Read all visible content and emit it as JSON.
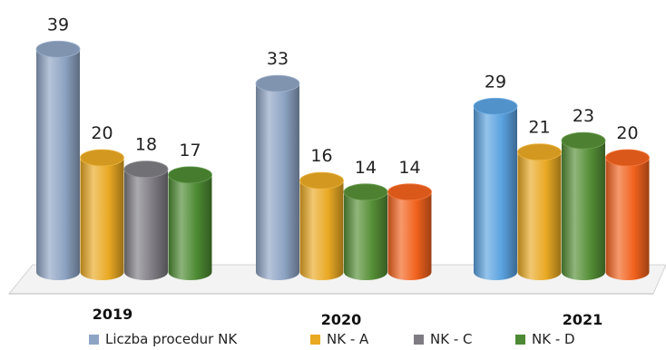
{
  "chart_data": {
    "type": "bar",
    "categories": [
      "2019",
      "2020",
      "2021"
    ],
    "series": [
      {
        "name": "Liczba procedur NK",
        "color": "#8ea4c4"
      },
      {
        "name": "NK - A",
        "color": "#e9a923"
      },
      {
        "name": "NK - C",
        "color": "#7e7c82"
      },
      {
        "name": "NK - D",
        "color": "#4d8a33"
      }
    ],
    "bars": [
      {
        "category": "2019",
        "series": "Liczba procedur NK",
        "value": 39,
        "color": "#8ea4c4"
      },
      {
        "category": "2019",
        "series": "NK - A",
        "value": 20,
        "color": "#e9a923"
      },
      {
        "category": "2019",
        "value": 18,
        "color": "#7e7c82"
      },
      {
        "category": "2019",
        "value": 17,
        "color": "#4d8a33"
      },
      {
        "category": "2020",
        "series": "Liczba procedur NK",
        "value": 33,
        "color": "#8ea4c4"
      },
      {
        "category": "2020",
        "series": "NK - A",
        "value": 16,
        "color": "#e9a923"
      },
      {
        "category": "2020",
        "value": 14,
        "color": "#558f36"
      },
      {
        "category": "2020",
        "value": 14,
        "color": "#f2621d"
      },
      {
        "category": "2021",
        "value": 29,
        "color": "#5aa2e0"
      },
      {
        "category": "2021",
        "series": "NK - A",
        "value": 21,
        "color": "#e9a923"
      },
      {
        "category": "2021",
        "value": 23,
        "color": "#558f36"
      },
      {
        "category": "2021",
        "value": 20,
        "color": "#f2621d"
      }
    ],
    "ylim": [
      0,
      45
    ],
    "grid": false,
    "legend_position": "bottom",
    "title": "",
    "xlabel": "",
    "ylabel": ""
  }
}
